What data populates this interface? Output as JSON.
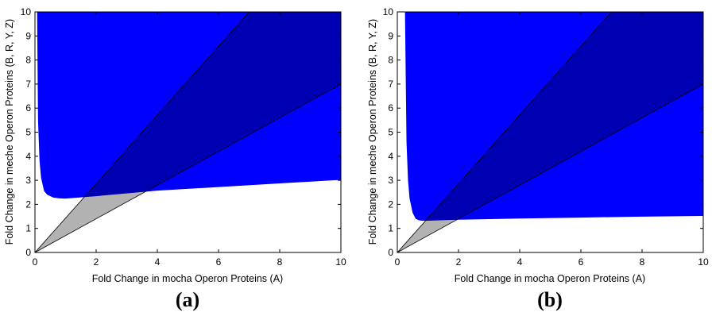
{
  "chart_data": [
    {
      "type": "area",
      "panel_label": "(a)",
      "xlabel": "Fold Change in mocha Operon Proteins (A)",
      "ylabel": "Fold Change in meche Operon Proteins (B, R, Y, Z)",
      "xlim": [
        0,
        10
      ],
      "ylim": [
        0,
        10
      ],
      "xticks": [
        0,
        2,
        4,
        6,
        8,
        10
      ],
      "yticks": [
        0,
        1,
        2,
        3,
        4,
        5,
        6,
        7,
        8,
        9,
        10
      ],
      "grid": false,
      "colors": {
        "region": "#0000ff",
        "wedge": "#b2b2b2",
        "outline": "#000000"
      },
      "region_lower_boundary": {
        "x": [
          0.07,
          0.1,
          0.15,
          0.2,
          0.3,
          0.4,
          0.6,
          0.8,
          1,
          2,
          4,
          6,
          8,
          10
        ],
        "y": [
          10,
          5.5,
          3.8,
          3.1,
          2.55,
          2.4,
          2.28,
          2.25,
          2.24,
          2.34,
          2.57,
          2.72,
          2.87,
          3.02
        ]
      },
      "wedge_upper_line": {
        "x": [
          0,
          7
        ],
        "y": [
          0,
          10
        ]
      },
      "wedge_lower_line": {
        "x": [
          0,
          10
        ],
        "y": [
          0,
          7
        ]
      }
    },
    {
      "type": "area",
      "panel_label": "(b)",
      "xlabel": "Fold Change in mocha Operon Proteins (A)",
      "ylabel": "Fold Change in meche Operon Proteins (B, R, Y, Z)",
      "xlim": [
        0,
        10
      ],
      "ylim": [
        0,
        10
      ],
      "xticks": [
        0,
        2,
        4,
        6,
        8,
        10
      ],
      "yticks": [
        0,
        1,
        2,
        3,
        4,
        5,
        6,
        7,
        8,
        9,
        10
      ],
      "grid": false,
      "colors": {
        "region": "#0000ff",
        "wedge": "#b2b2b2",
        "outline": "#000000"
      },
      "region_lower_boundary": {
        "x": [
          0.25,
          0.3,
          0.35,
          0.4,
          0.5,
          0.6,
          0.7,
          0.8,
          1,
          2,
          4,
          6,
          8,
          10
        ],
        "y": [
          10,
          4.6,
          3.0,
          2.25,
          1.65,
          1.4,
          1.34,
          1.32,
          1.32,
          1.36,
          1.41,
          1.45,
          1.49,
          1.52
        ]
      },
      "wedge_upper_line": {
        "x": [
          0,
          7
        ],
        "y": [
          0,
          10
        ]
      },
      "wedge_lower_line": {
        "x": [
          0,
          10
        ],
        "y": [
          0,
          7
        ]
      }
    }
  ]
}
